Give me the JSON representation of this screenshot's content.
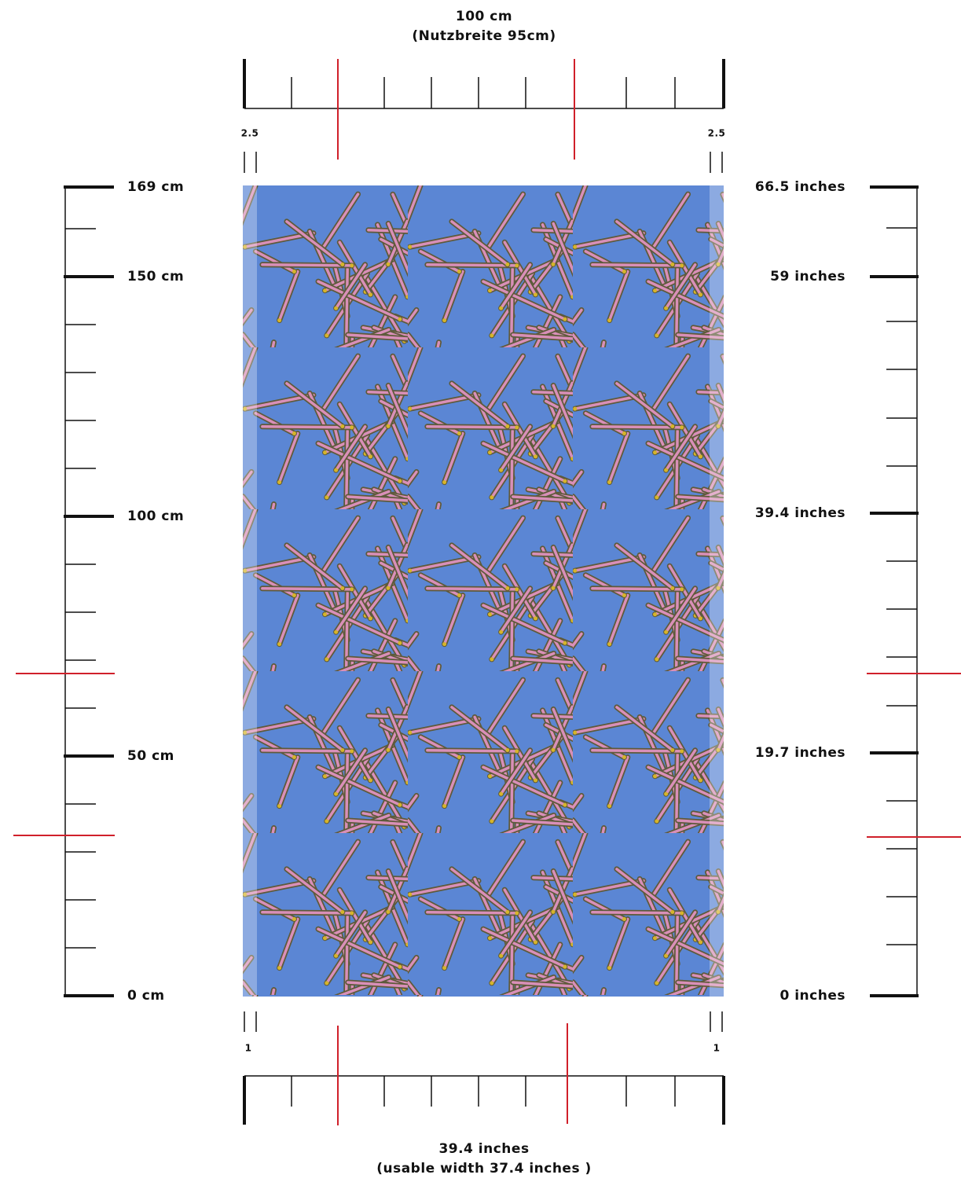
{
  "top_ruler": {
    "title": "100 cm",
    "subtitle": "(Nutzbreite 95cm)",
    "margin_left": "2.5",
    "margin_right": "2.5"
  },
  "left_ruler": {
    "labels": [
      "169 cm",
      "150 cm",
      "100 cm",
      "50 cm",
      "0 cm"
    ]
  },
  "right_ruler": {
    "labels": [
      "66.5 inches",
      "59 inches",
      "39.4 inches",
      "19.7 inches",
      "0 inches"
    ]
  },
  "bottom_ruler": {
    "margin_left": "1",
    "margin_right": "1",
    "title": "39.4 inches",
    "subtitle": "(usable width 37.4 inches )"
  }
}
